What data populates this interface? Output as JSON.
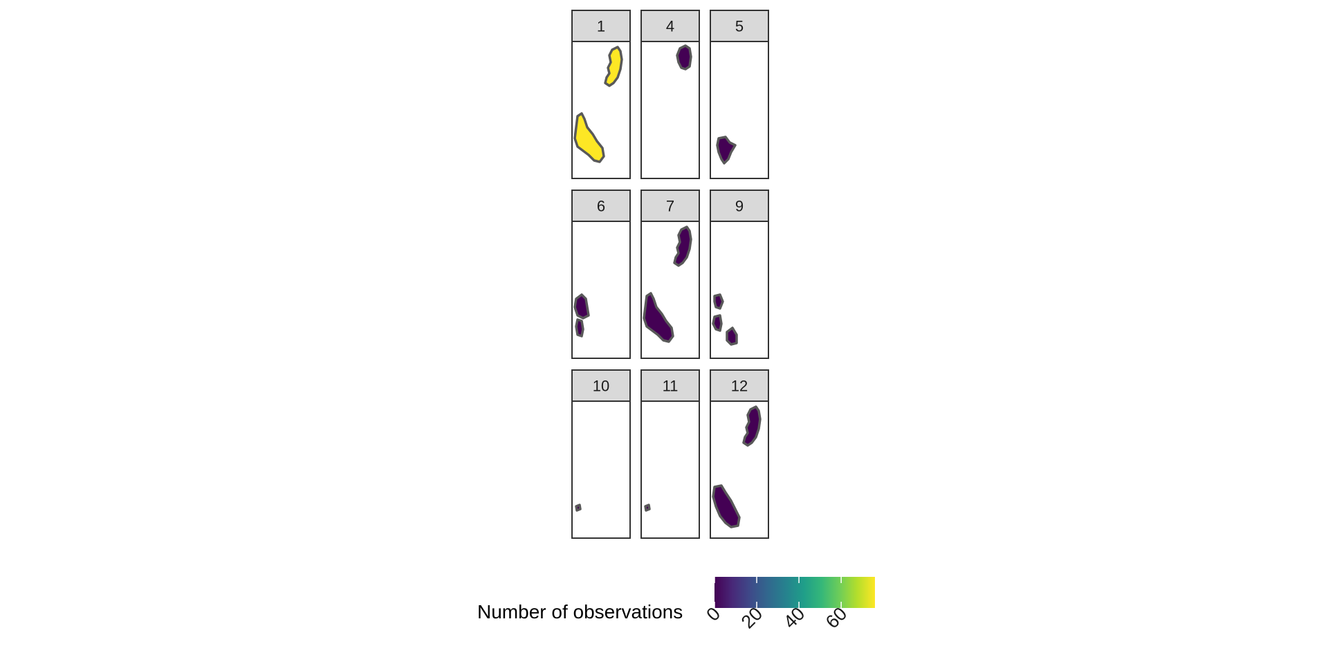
{
  "facets": [
    {
      "label": "1",
      "fill": "#FDE725",
      "shapes": [
        "north",
        "south"
      ]
    },
    {
      "label": "4",
      "fill": "#440154",
      "shapes": [
        "north-top"
      ]
    },
    {
      "label": "5",
      "fill": "#440154",
      "shapes": [
        "south-small"
      ]
    },
    {
      "label": "6",
      "fill": "#440154",
      "shapes": [
        "west-bits"
      ]
    },
    {
      "label": "7",
      "fill": "#440154",
      "shapes": [
        "north",
        "south"
      ]
    },
    {
      "label": "9",
      "fill": "#440154",
      "shapes": [
        "scatter"
      ]
    },
    {
      "label": "10",
      "fill": "#440154",
      "shapes": [
        "dot"
      ]
    },
    {
      "label": "11",
      "fill": "#440154",
      "shapes": [
        "dot"
      ]
    },
    {
      "label": "12",
      "fill": "#440154",
      "shapes": [
        "north",
        "south-alt"
      ]
    }
  ],
  "legend": {
    "title": "Number of observations",
    "ticks": [
      "0",
      "20",
      "40",
      "60"
    ],
    "tick_values": [
      0,
      20,
      40,
      60
    ],
    "range": [
      0,
      76
    ],
    "colors": [
      "#440154",
      "#482878",
      "#3E4A89",
      "#31688E",
      "#26828E",
      "#1F9E89",
      "#35B779",
      "#6DCD59",
      "#B4DE2C",
      "#FDE725"
    ]
  },
  "colors": {
    "outline": "#595959",
    "panel_border": "#333333",
    "strip_bg": "#D9D9D9"
  }
}
